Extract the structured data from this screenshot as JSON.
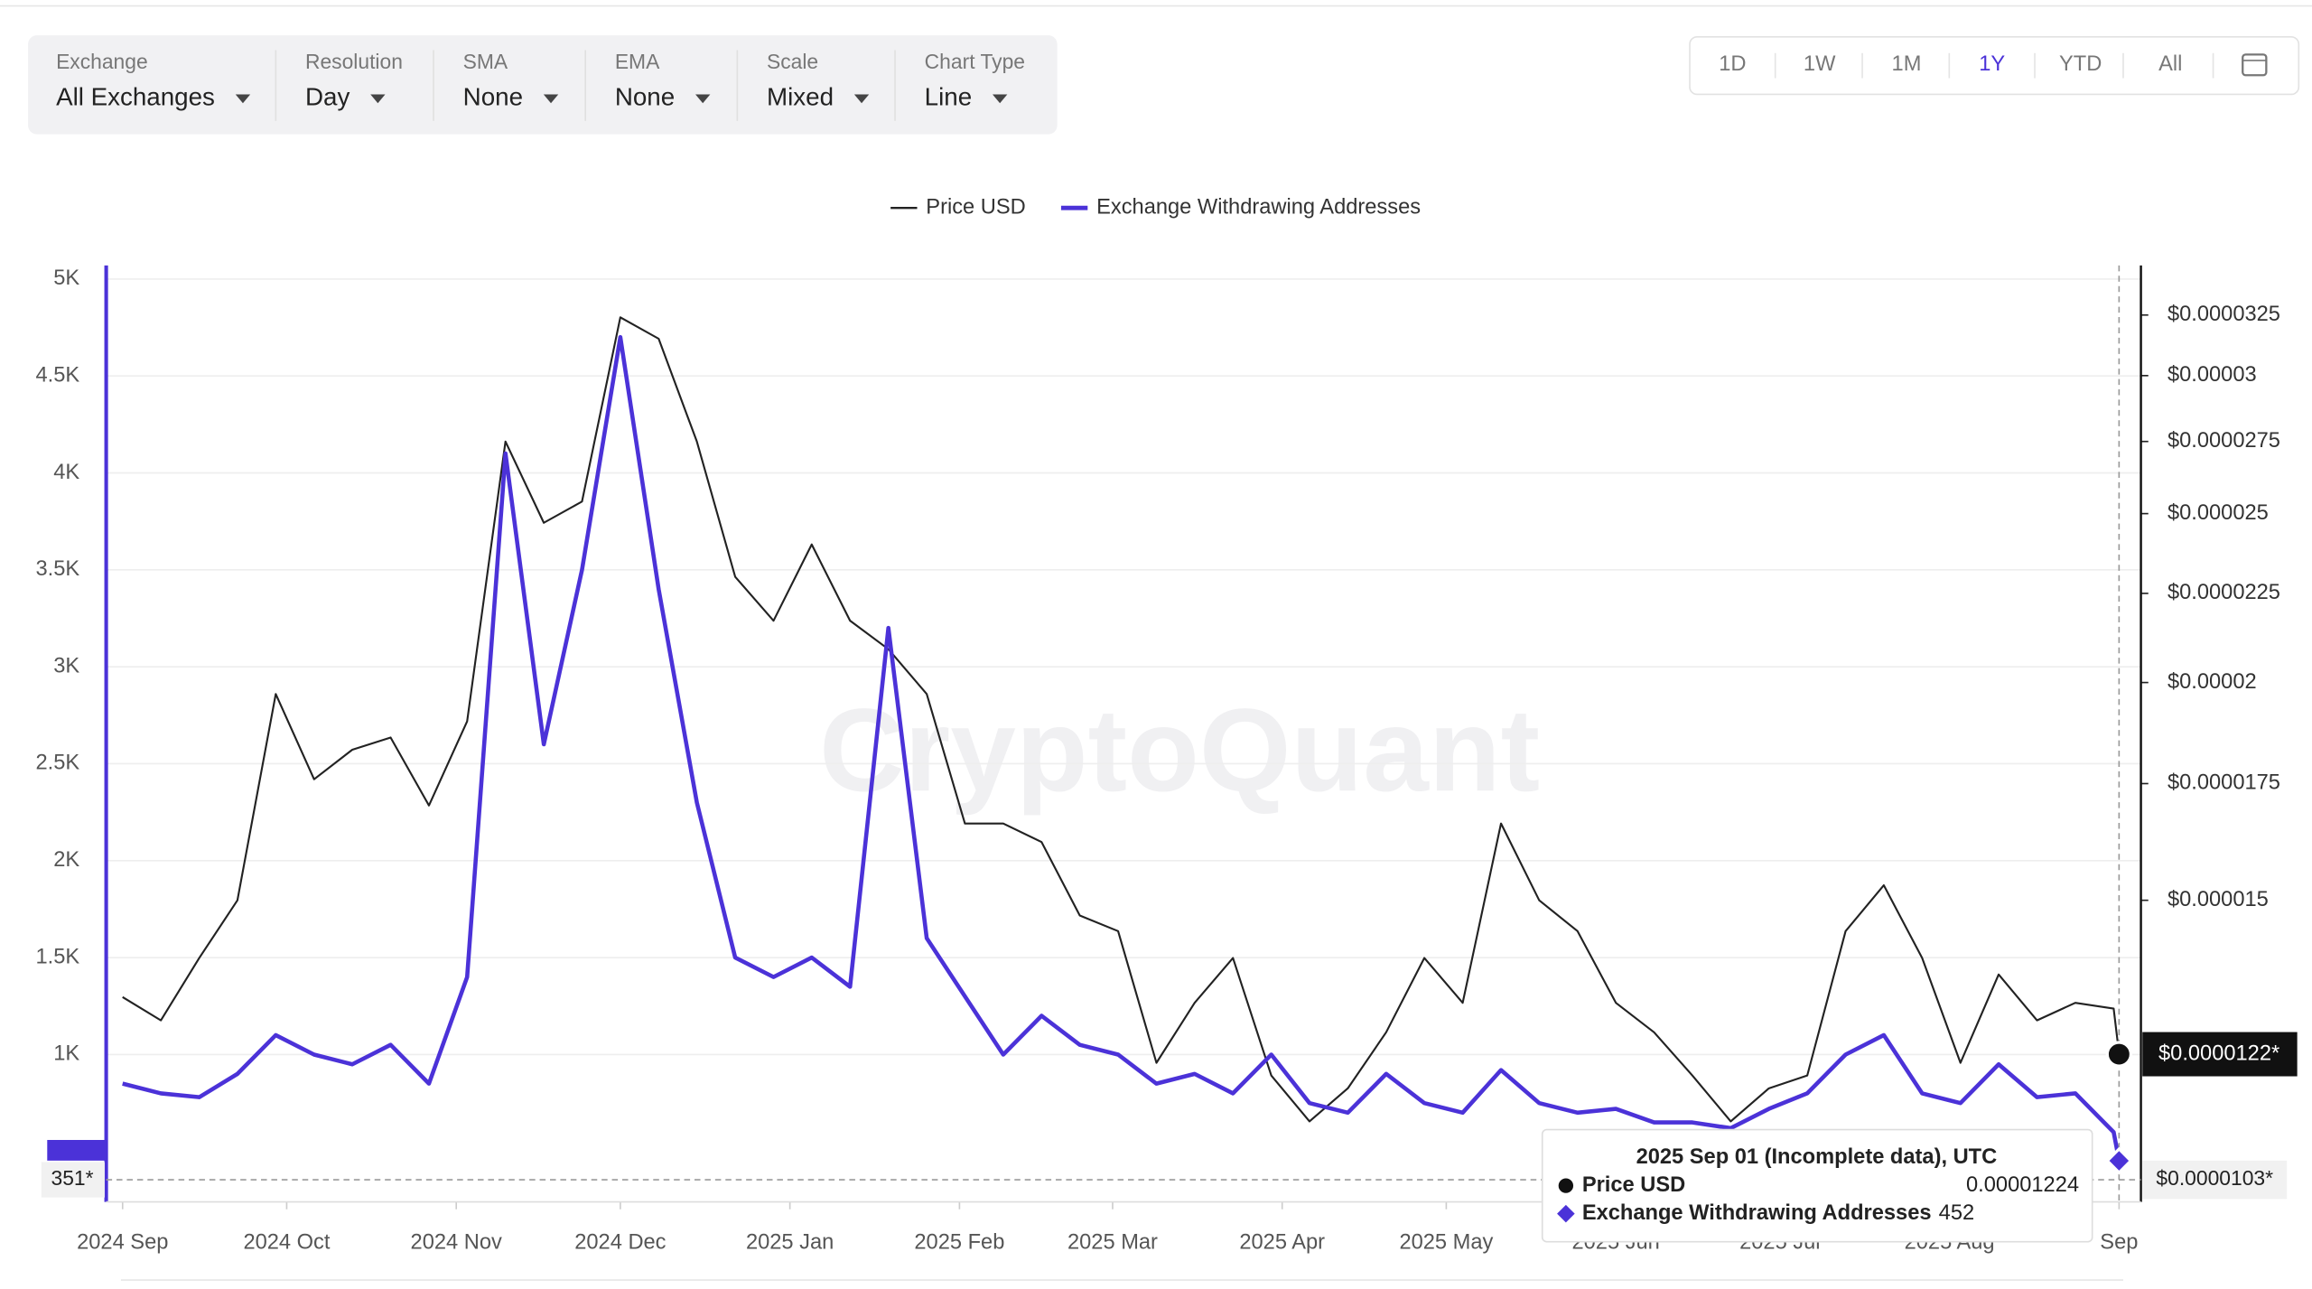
{
  "controls": [
    {
      "label": "Exchange",
      "value": "All Exchanges"
    },
    {
      "label": "Resolution",
      "value": "Day"
    },
    {
      "label": "SMA",
      "value": "None"
    },
    {
      "label": "EMA",
      "value": "None"
    },
    {
      "label": "Scale",
      "value": "Mixed"
    },
    {
      "label": "Chart Type",
      "value": "Line"
    }
  ],
  "ranges": [
    "1D",
    "1W",
    "1M",
    "1Y",
    "YTD",
    "All"
  ],
  "active_range": "1Y",
  "chart_data": {
    "type": "line",
    "watermark": "CryptoQuant",
    "x": [
      "2024-09-01",
      "2024-09-08",
      "2024-09-15",
      "2024-09-22",
      "2024-09-29",
      "2024-10-06",
      "2024-10-13",
      "2024-10-20",
      "2024-10-27",
      "2024-11-03",
      "2024-11-10",
      "2024-11-17",
      "2024-11-24",
      "2024-12-01",
      "2024-12-08",
      "2024-12-15",
      "2024-12-22",
      "2024-12-29",
      "2025-01-05",
      "2025-01-12",
      "2025-01-19",
      "2025-01-26",
      "2025-02-02",
      "2025-02-09",
      "2025-02-16",
      "2025-02-23",
      "2025-03-02",
      "2025-03-09",
      "2025-03-16",
      "2025-03-23",
      "2025-03-30",
      "2025-04-06",
      "2025-04-13",
      "2025-04-20",
      "2025-04-27",
      "2025-05-04",
      "2025-05-11",
      "2025-05-18",
      "2025-05-25",
      "2025-06-01",
      "2025-06-08",
      "2025-06-15",
      "2025-06-22",
      "2025-06-29",
      "2025-07-06",
      "2025-07-13",
      "2025-07-20",
      "2025-07-27",
      "2025-08-03",
      "2025-08-10",
      "2025-08-17",
      "2025-08-24",
      "2025-08-31",
      "2025-09-01"
    ],
    "series": [
      {
        "name": "Price USD",
        "color": "#222222",
        "axis": "y2",
        "values": [
          1.32e-05,
          1.28e-05,
          1.39e-05,
          1.5e-05,
          1.97e-05,
          1.76e-05,
          1.83e-05,
          1.86e-05,
          1.7e-05,
          1.9e-05,
          2.75e-05,
          2.47e-05,
          2.54e-05,
          3.24e-05,
          3.15e-05,
          2.75e-05,
          2.3e-05,
          2.17e-05,
          2.4e-05,
          2.17e-05,
          2.09e-05,
          1.97e-05,
          1.66e-05,
          1.66e-05,
          1.62e-05,
          1.47e-05,
          1.44e-05,
          1.21e-05,
          1.31e-05,
          1.39e-05,
          1.19e-05,
          1.12e-05,
          1.17e-05,
          1.26e-05,
          1.39e-05,
          1.31e-05,
          1.66e-05,
          1.5e-05,
          1.44e-05,
          1.31e-05,
          1.26e-05,
          1.19e-05,
          1.12e-05,
          1.17e-05,
          1.19e-05,
          1.44e-05,
          1.53e-05,
          1.39e-05,
          1.21e-05,
          1.36e-05,
          1.28e-05,
          1.31e-05,
          1.3e-05,
          1.224e-05
        ]
      },
      {
        "name": "Exchange Withdrawing Addresses",
        "color": "#4b32d8",
        "values": [
          850,
          800,
          780,
          900,
          1100,
          1000,
          950,
          1050,
          850,
          1400,
          4100,
          2600,
          3500,
          4700,
          3400,
          2300,
          1500,
          1400,
          1500,
          1350,
          3200,
          1600,
          1300,
          1000,
          1200,
          1050,
          1000,
          850,
          900,
          800,
          1000,
          750,
          700,
          900,
          750,
          700,
          920,
          750,
          700,
          720,
          650,
          650,
          620,
          720,
          800,
          1000,
          1100,
          800,
          750,
          950,
          780,
          800,
          600,
          452
        ]
      }
    ],
    "xlim": [
      "2024-08-29",
      "2025-09-05"
    ],
    "xticks": [
      {
        "value": "2024-09-01",
        "label": "2024 Sep"
      },
      {
        "value": "2024-10-01",
        "label": "2024 Oct"
      },
      {
        "value": "2024-11-01",
        "label": "2024 Nov"
      },
      {
        "value": "2024-12-01",
        "label": "2024 Dec"
      },
      {
        "value": "2025-01-01",
        "label": "2025 Jan"
      },
      {
        "value": "2025-02-01",
        "label": "2025 Feb"
      },
      {
        "value": "2025-03-01",
        "label": "2025 Mar"
      },
      {
        "value": "2025-04-01",
        "label": "2025 Apr"
      },
      {
        "value": "2025-05-01",
        "label": "2025 May"
      },
      {
        "value": "2025-06-01",
        "label": "2025 Jun"
      },
      {
        "value": "2025-07-01",
        "label": "2025 Jul"
      },
      {
        "value": "2025-08-01",
        "label": "2025 Aug"
      },
      {
        "value": "2025-09-01",
        "label": "Sep"
      }
    ],
    "ylim": [
      240,
      5070
    ],
    "yticks": [
      {
        "value": 1000,
        "label": "1K"
      },
      {
        "value": 1500,
        "label": "1.5K"
      },
      {
        "value": 2000,
        "label": "2K"
      },
      {
        "value": 2500,
        "label": "2.5K"
      },
      {
        "value": 3000,
        "label": "3K"
      },
      {
        "value": 3500,
        "label": "3.5K"
      },
      {
        "value": 4000,
        "label": "4K"
      },
      {
        "value": 4500,
        "label": "4.5K"
      },
      {
        "value": 5000,
        "label": "5K"
      }
    ],
    "y2lim": [
      1.007e-05,
      3.47e-05
    ],
    "y2log": true,
    "y2ticks": [
      {
        "value": 3.25e-05,
        "label": "$0.0000325"
      },
      {
        "value": 3e-05,
        "label": "$0.00003"
      },
      {
        "value": 2.75e-05,
        "label": "$0.0000275"
      },
      {
        "value": 2.5e-05,
        "label": "$0.000025"
      },
      {
        "value": 2.25e-05,
        "label": "$0.0000225"
      },
      {
        "value": 2e-05,
        "label": "$0.00002"
      },
      {
        "value": 1.75e-05,
        "label": "$0.0000175"
      },
      {
        "value": 1.5e-05,
        "label": "$0.000015"
      }
    ],
    "grid": true,
    "legend": "top",
    "badges": {
      "price": "$0.0000122*",
      "cursor_price": "$0.0000103*",
      "cursor_left": "351*"
    },
    "tooltip": {
      "title": "2025 Sep 01 (Incomplete data), UTC"
    }
  }
}
